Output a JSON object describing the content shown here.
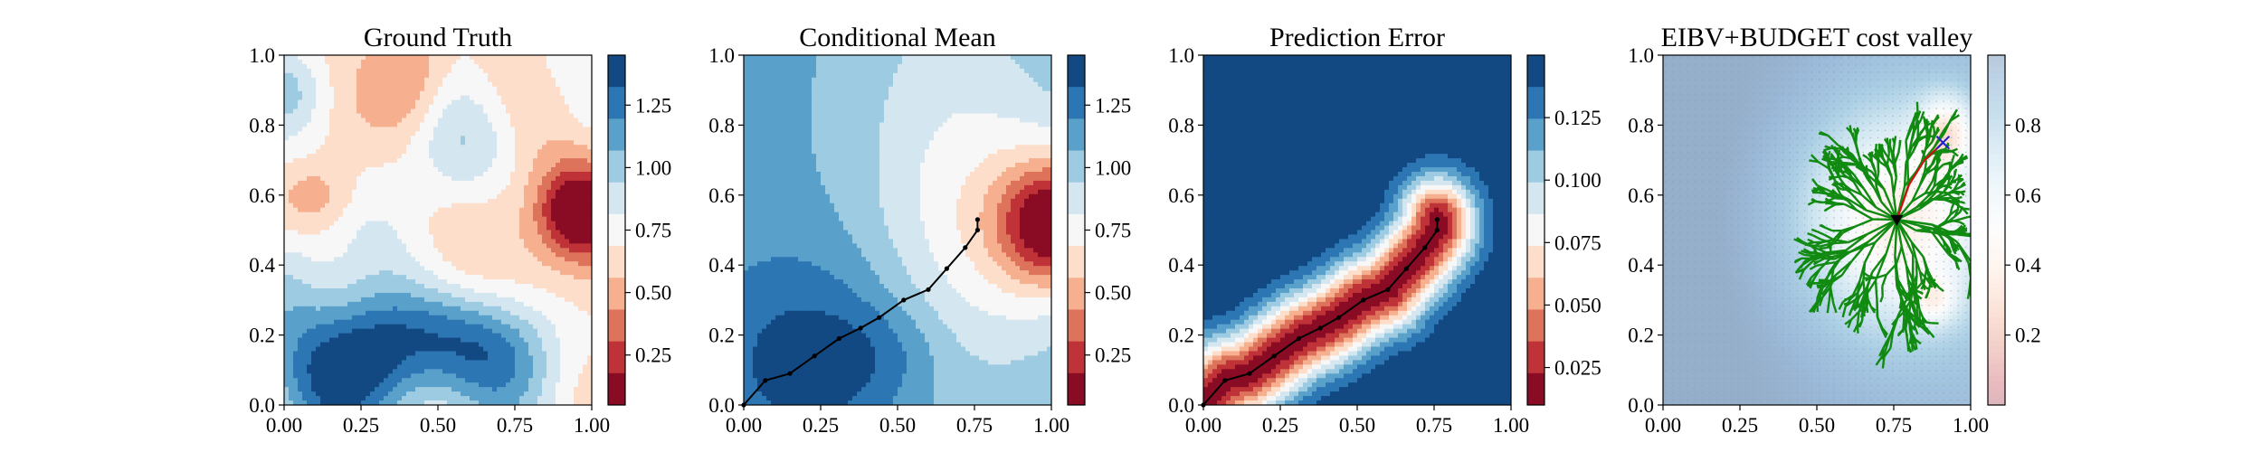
{
  "figure": {
    "type": "multi-panel contour figure",
    "panels": 4
  },
  "chart_data": [
    {
      "type": "heatmap",
      "title": "Ground Truth",
      "x_ticks": [
        "0.00",
        "0.25",
        "0.50",
        "0.75",
        "1.00"
      ],
      "y_ticks": [
        "0.0",
        "0.2",
        "0.4",
        "0.6",
        "0.8",
        "1.0"
      ],
      "xlim": [
        0,
        1
      ],
      "ylim": [
        0,
        1
      ],
      "colormap": "RdBu",
      "colorbar": {
        "range": [
          0.05,
          1.45
        ],
        "levels": 11,
        "ticks": [
          "0.25",
          "0.50",
          "0.75",
          "1.00",
          "1.25"
        ],
        "tick_values": [
          0.25,
          0.5,
          0.75,
          1.0,
          1.25
        ]
      },
      "field": {
        "base": 0.7,
        "hotspot": {
          "x": 0.95,
          "y": 0.55,
          "value": 0.1
        },
        "cold_region": "lower-left, values near 1.3-1.4"
      }
    },
    {
      "type": "heatmap",
      "title": "Conditional Mean",
      "x_ticks": [
        "0.00",
        "0.25",
        "0.50",
        "0.75",
        "1.00"
      ],
      "y_ticks": [
        "0.0",
        "0.2",
        "0.4",
        "0.6",
        "0.8",
        "1.0"
      ],
      "xlim": [
        0,
        1
      ],
      "ylim": [
        0,
        1
      ],
      "colormap": "RdBu",
      "colorbar": {
        "range": [
          0.05,
          1.45
        ],
        "levels": 11,
        "ticks": [
          "0.25",
          "0.50",
          "0.75",
          "1.00",
          "1.25"
        ],
        "tick_values": [
          0.25,
          0.5,
          0.75,
          1.0,
          1.25
        ]
      },
      "field": {
        "base": 1.1,
        "hotspot": {
          "x": 1.0,
          "y": 0.52,
          "value": 0.15
        },
        "cold_region": "lower-left blob, values near 1.3"
      },
      "path": {
        "x": [
          0.0,
          0.07,
          0.15,
          0.23,
          0.31,
          0.38,
          0.44,
          0.52,
          0.6,
          0.66,
          0.72,
          0.76,
          0.76
        ],
        "y": [
          0.0,
          0.07,
          0.09,
          0.14,
          0.19,
          0.22,
          0.25,
          0.3,
          0.33,
          0.39,
          0.45,
          0.5,
          0.53
        ]
      }
    },
    {
      "type": "heatmap",
      "title": "Prediction Error",
      "x_ticks": [
        "0.00",
        "0.25",
        "0.50",
        "0.75",
        "1.00"
      ],
      "y_ticks": [
        "0.0",
        "0.2",
        "0.4",
        "0.6",
        "0.8",
        "1.0"
      ],
      "xlim": [
        0,
        1
      ],
      "ylim": [
        0,
        1
      ],
      "colormap": "RdBu",
      "colorbar": {
        "range": [
          0.01,
          0.15
        ],
        "levels": 11,
        "ticks": [
          "0.025",
          "0.050",
          "0.075",
          "0.100",
          "0.125"
        ],
        "tick_values": [
          0.025,
          0.05,
          0.075,
          0.1,
          0.125
        ]
      },
      "field": {
        "description": "error is low along the sampled path and grows with distance from it",
        "min": 0.015,
        "max": 0.148
      },
      "path": {
        "x": [
          0.0,
          0.07,
          0.15,
          0.23,
          0.31,
          0.38,
          0.44,
          0.52,
          0.6,
          0.66,
          0.72,
          0.76,
          0.76
        ],
        "y": [
          0.0,
          0.07,
          0.09,
          0.14,
          0.19,
          0.22,
          0.25,
          0.3,
          0.33,
          0.39,
          0.45,
          0.5,
          0.53
        ]
      }
    },
    {
      "type": "heatmap",
      "title": "EIBV+BUDGET cost valley",
      "x_ticks": [
        "0.00",
        "0.25",
        "0.50",
        "0.75",
        "1.00"
      ],
      "y_ticks": [
        "0.0",
        "0.2",
        "0.4",
        "0.6",
        "0.8",
        "1.0"
      ],
      "xlim": [
        0,
        1
      ],
      "ylim": [
        0,
        1
      ],
      "colormap": "RdBu (light, alpha)",
      "colorbar": {
        "range": [
          0.0,
          1.0
        ],
        "ticks": [
          "0.2",
          "0.4",
          "0.6",
          "0.8"
        ],
        "tick_values": [
          0.2,
          0.4,
          0.6,
          0.8
        ]
      },
      "field": {
        "description": "cost valley: high (blue) cost away from the current location, low (red) cost pockets near (0.91,0.78) and (0.88,0.3)"
      },
      "rrt_tree": {
        "root": {
          "x": 0.76,
          "y": 0.53
        },
        "color": "#118a11"
      },
      "current_location": {
        "x": 0.76,
        "y": 0.53
      },
      "target": {
        "x": 0.91,
        "y": 0.75
      },
      "planned_path": {
        "x": [
          0.76,
          0.8,
          0.85,
          0.91
        ],
        "y": [
          0.53,
          0.63,
          0.7,
          0.75
        ]
      }
    }
  ]
}
